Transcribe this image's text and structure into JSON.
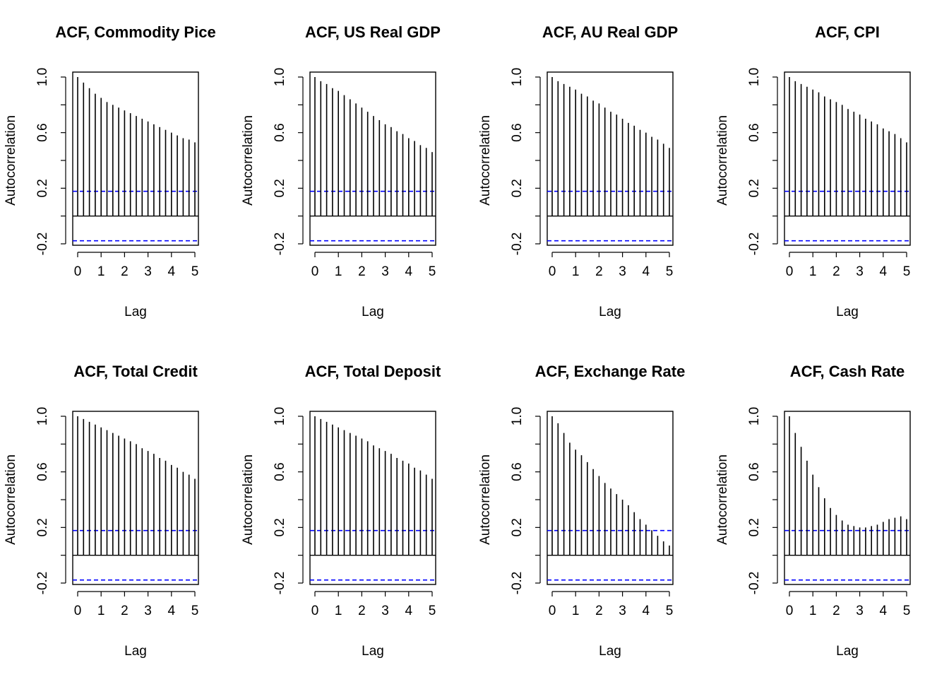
{
  "chart_data": [
    {
      "type": "bar",
      "title": "ACF, Commodity Pice",
      "xlabel": "Lag",
      "ylabel": "Autocorrelation",
      "xticks": [
        "0",
        "1",
        "2",
        "3",
        "4",
        "5"
      ],
      "yticks": [
        "-0.2",
        "0.2",
        "0.6",
        "1.0"
      ],
      "xlim": [
        -0.2,
        5.1
      ],
      "ylim": [
        -0.22,
        1.03
      ],
      "ci_bounds": [
        0.178,
        -0.178
      ],
      "x": [
        0,
        0.25,
        0.5,
        0.75,
        1,
        1.25,
        1.5,
        1.75,
        2,
        2.25,
        2.5,
        2.75,
        3,
        3.25,
        3.5,
        3.75,
        4,
        4.25,
        4.5,
        4.75,
        5
      ],
      "values": [
        1.0,
        0.96,
        0.92,
        0.88,
        0.85,
        0.82,
        0.8,
        0.78,
        0.76,
        0.74,
        0.72,
        0.7,
        0.68,
        0.66,
        0.64,
        0.62,
        0.6,
        0.58,
        0.56,
        0.55,
        0.53
      ]
    },
    {
      "type": "bar",
      "title": "ACF, US Real GDP",
      "xlabel": "Lag",
      "ylabel": "Autocorrelation",
      "xticks": [
        "0",
        "1",
        "2",
        "3",
        "4",
        "5"
      ],
      "yticks": [
        "-0.2",
        "0.2",
        "0.6",
        "1.0"
      ],
      "xlim": [
        -0.2,
        5.1
      ],
      "ylim": [
        -0.22,
        1.03
      ],
      "ci_bounds": [
        0.178,
        -0.178
      ],
      "x": [
        0,
        0.25,
        0.5,
        0.75,
        1,
        1.25,
        1.5,
        1.75,
        2,
        2.25,
        2.5,
        2.75,
        3,
        3.25,
        3.5,
        3.75,
        4,
        4.25,
        4.5,
        4.75,
        5
      ],
      "values": [
        1.0,
        0.97,
        0.95,
        0.92,
        0.9,
        0.87,
        0.84,
        0.81,
        0.78,
        0.75,
        0.72,
        0.69,
        0.66,
        0.64,
        0.61,
        0.59,
        0.56,
        0.54,
        0.51,
        0.49,
        0.46
      ]
    },
    {
      "type": "bar",
      "title": "ACF, AU Real GDP",
      "xlabel": "Lag",
      "ylabel": "Autocorrelation",
      "xticks": [
        "0",
        "1",
        "2",
        "3",
        "4",
        "5"
      ],
      "yticks": [
        "-0.2",
        "0.2",
        "0.6",
        "1.0"
      ],
      "xlim": [
        -0.2,
        5.1
      ],
      "ylim": [
        -0.22,
        1.03
      ],
      "ci_bounds": [
        0.178,
        -0.178
      ],
      "x": [
        0,
        0.25,
        0.5,
        0.75,
        1,
        1.25,
        1.5,
        1.75,
        2,
        2.25,
        2.5,
        2.75,
        3,
        3.25,
        3.5,
        3.75,
        4,
        4.25,
        4.5,
        4.75,
        5
      ],
      "values": [
        1.0,
        0.97,
        0.95,
        0.93,
        0.91,
        0.88,
        0.86,
        0.83,
        0.81,
        0.78,
        0.75,
        0.73,
        0.7,
        0.67,
        0.65,
        0.62,
        0.6,
        0.57,
        0.55,
        0.52,
        0.49
      ]
    },
    {
      "type": "bar",
      "title": "ACF, CPI",
      "xlabel": "Lag",
      "ylabel": "Autocorrelation",
      "xticks": [
        "0",
        "1",
        "2",
        "3",
        "4",
        "5"
      ],
      "yticks": [
        "-0.2",
        "0.2",
        "0.6",
        "1.0"
      ],
      "xlim": [
        -0.2,
        5.1
      ],
      "ylim": [
        -0.22,
        1.03
      ],
      "ci_bounds": [
        0.178,
        -0.178
      ],
      "x": [
        0,
        0.25,
        0.5,
        0.75,
        1,
        1.25,
        1.5,
        1.75,
        2,
        2.25,
        2.5,
        2.75,
        3,
        3.25,
        3.5,
        3.75,
        4,
        4.25,
        4.5,
        4.75,
        5
      ],
      "values": [
        1.0,
        0.97,
        0.95,
        0.93,
        0.91,
        0.89,
        0.86,
        0.84,
        0.82,
        0.8,
        0.77,
        0.75,
        0.73,
        0.7,
        0.68,
        0.66,
        0.63,
        0.61,
        0.59,
        0.56,
        0.53
      ]
    },
    {
      "type": "bar",
      "title": "ACF, Total Credit",
      "xlabel": "Lag",
      "ylabel": "Autocorrelation",
      "xticks": [
        "0",
        "1",
        "2",
        "3",
        "4",
        "5"
      ],
      "yticks": [
        "-0.2",
        "0.2",
        "0.6",
        "1.0"
      ],
      "xlim": [
        -0.2,
        5.1
      ],
      "ylim": [
        -0.22,
        1.03
      ],
      "ci_bounds": [
        0.178,
        -0.178
      ],
      "x": [
        0,
        0.25,
        0.5,
        0.75,
        1,
        1.25,
        1.5,
        1.75,
        2,
        2.25,
        2.5,
        2.75,
        3,
        3.25,
        3.5,
        3.75,
        4,
        4.25,
        4.5,
        4.75,
        5
      ],
      "values": [
        1.0,
        0.98,
        0.96,
        0.94,
        0.92,
        0.9,
        0.88,
        0.86,
        0.84,
        0.82,
        0.8,
        0.77,
        0.75,
        0.73,
        0.7,
        0.68,
        0.65,
        0.63,
        0.6,
        0.58,
        0.55
      ]
    },
    {
      "type": "bar",
      "title": "ACF, Total Deposit",
      "xlabel": "Lag",
      "ylabel": "Autocorrelation",
      "xticks": [
        "0",
        "1",
        "2",
        "3",
        "4",
        "5"
      ],
      "yticks": [
        "-0.2",
        "0.2",
        "0.6",
        "1.0"
      ],
      "xlim": [
        -0.2,
        5.1
      ],
      "ylim": [
        -0.22,
        1.03
      ],
      "ci_bounds": [
        0.178,
        -0.178
      ],
      "x": [
        0,
        0.25,
        0.5,
        0.75,
        1,
        1.25,
        1.5,
        1.75,
        2,
        2.25,
        2.5,
        2.75,
        3,
        3.25,
        3.5,
        3.75,
        4,
        4.25,
        4.5,
        4.75,
        5
      ],
      "values": [
        1.0,
        0.98,
        0.96,
        0.94,
        0.92,
        0.9,
        0.88,
        0.86,
        0.84,
        0.82,
        0.79,
        0.77,
        0.75,
        0.73,
        0.7,
        0.68,
        0.66,
        0.63,
        0.61,
        0.58,
        0.55
      ]
    },
    {
      "type": "bar",
      "title": "ACF, Exchange Rate",
      "xlabel": "Lag",
      "ylabel": "Autocorrelation",
      "xticks": [
        "0",
        "1",
        "2",
        "3",
        "4",
        "5"
      ],
      "yticks": [
        "-0.2",
        "0.2",
        "0.6",
        "1.0"
      ],
      "xlim": [
        -0.2,
        5.1
      ],
      "ylim": [
        -0.22,
        1.03
      ],
      "ci_bounds": [
        0.178,
        -0.178
      ],
      "x": [
        0,
        0.25,
        0.5,
        0.75,
        1,
        1.25,
        1.5,
        1.75,
        2,
        2.25,
        2.5,
        2.75,
        3,
        3.25,
        3.5,
        3.75,
        4,
        4.25,
        4.5,
        4.75,
        5
      ],
      "values": [
        1.0,
        0.95,
        0.88,
        0.81,
        0.76,
        0.72,
        0.67,
        0.62,
        0.57,
        0.52,
        0.48,
        0.44,
        0.4,
        0.36,
        0.31,
        0.26,
        0.22,
        0.18,
        0.14,
        0.1,
        0.07
      ]
    },
    {
      "type": "bar",
      "title": "ACF, Cash Rate",
      "xlabel": "Lag",
      "ylabel": "Autocorrelation",
      "xticks": [
        "0",
        "1",
        "2",
        "3",
        "4",
        "5"
      ],
      "yticks": [
        "-0.2",
        "0.2",
        "0.6",
        "1.0"
      ],
      "xlim": [
        -0.2,
        5.1
      ],
      "ylim": [
        -0.22,
        1.03
      ],
      "ci_bounds": [
        0.178,
        -0.178
      ],
      "x": [
        0,
        0.25,
        0.5,
        0.75,
        1,
        1.25,
        1.5,
        1.75,
        2,
        2.25,
        2.5,
        2.75,
        3,
        3.25,
        3.5,
        3.75,
        4,
        4.25,
        4.5,
        4.75,
        5
      ],
      "values": [
        1.0,
        0.88,
        0.78,
        0.68,
        0.58,
        0.49,
        0.41,
        0.34,
        0.29,
        0.25,
        0.22,
        0.21,
        0.2,
        0.2,
        0.21,
        0.22,
        0.24,
        0.26,
        0.27,
        0.28,
        0.26
      ]
    }
  ],
  "colors": {
    "ci_line": "#0000ff",
    "bars": "#000000",
    "frame": "#000000"
  }
}
